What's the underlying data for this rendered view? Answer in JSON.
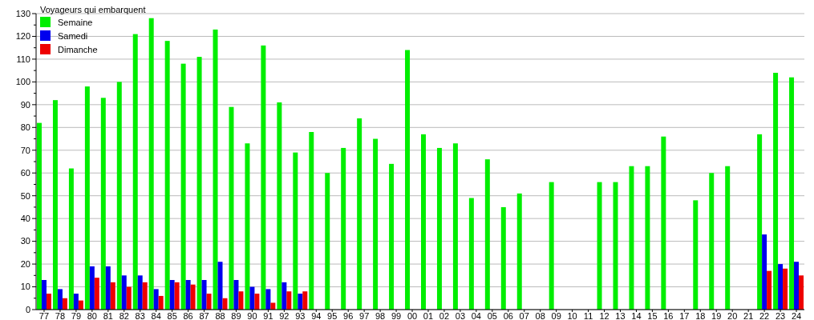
{
  "chart_data": {
    "type": "bar",
    "title": "Voyageurs qui embarquent",
    "categories": [
      "77",
      "78",
      "79",
      "80",
      "81",
      "82",
      "83",
      "84",
      "85",
      "86",
      "87",
      "88",
      "89",
      "90",
      "91",
      "92",
      "93",
      "94",
      "95",
      "96",
      "97",
      "98",
      "99",
      "00",
      "01",
      "02",
      "03",
      "04",
      "05",
      "06",
      "07",
      "08",
      "09",
      "10",
      "11",
      "12",
      "13",
      "14",
      "15",
      "16",
      "17",
      "18",
      "19",
      "20",
      "21",
      "22",
      "23",
      "24"
    ],
    "series": [
      {
        "name": "Semaine",
        "color": "#00ee00",
        "values": [
          82,
          92,
          62,
          98,
          93,
          100,
          121,
          128,
          118,
          108,
          111,
          123,
          89,
          73,
          116,
          91,
          69,
          78,
          60,
          71,
          84,
          75,
          64,
          114,
          77,
          71,
          73,
          49,
          66,
          45,
          51,
          null,
          56,
          null,
          null,
          56,
          56,
          63,
          63,
          76,
          null,
          48,
          60,
          63,
          null,
          77,
          104,
          102
        ]
      },
      {
        "name": "Samedi",
        "color": "#0000ee",
        "values": [
          13,
          9,
          7,
          19,
          19,
          15,
          15,
          9,
          13,
          13,
          13,
          21,
          13,
          10,
          9,
          12,
          7,
          null,
          null,
          null,
          null,
          null,
          null,
          null,
          null,
          null,
          null,
          null,
          null,
          null,
          null,
          null,
          null,
          null,
          null,
          null,
          null,
          null,
          null,
          null,
          null,
          null,
          null,
          null,
          null,
          33,
          20,
          21
        ]
      },
      {
        "name": "Dimanche",
        "color": "#ee0000",
        "values": [
          7,
          5,
          4,
          14,
          12,
          10,
          12,
          6,
          12,
          11,
          7,
          5,
          8,
          7,
          3,
          8,
          8,
          null,
          null,
          null,
          null,
          null,
          null,
          null,
          null,
          null,
          null,
          null,
          null,
          null,
          null,
          null,
          null,
          null,
          null,
          null,
          null,
          null,
          null,
          null,
          null,
          null,
          null,
          null,
          null,
          17,
          18,
          15
        ]
      }
    ],
    "ylim": [
      0,
      130
    ],
    "yticks": [
      0,
      {
        "value": 5,
        "label": null
      },
      10,
      {
        "value": 15,
        "label": null
      },
      20,
      {
        "value": 25,
        "label": null
      },
      30,
      {
        "value": 35,
        "label": null
      },
      40,
      {
        "value": 45,
        "label": null
      },
      50,
      {
        "value": 55,
        "label": null
      },
      60,
      {
        "value": 65,
        "label": null
      },
      70,
      {
        "value": 75,
        "label": null
      },
      80,
      {
        "value": 85,
        "label": null
      },
      90,
      {
        "value": 95,
        "label": null
      },
      100,
      {
        "value": 105,
        "label": null
      },
      110,
      {
        "value": 115,
        "label": null
      },
      120,
      {
        "value": 125,
        "label": null
      },
      130
    ],
    "grid": "y",
    "legend": "top left"
  }
}
